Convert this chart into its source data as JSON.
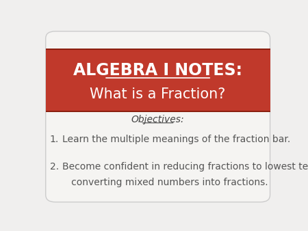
{
  "bg_color": "#f0efee",
  "header_bg": "#c0392b",
  "header_dark": "#8b2010",
  "header_text_line1": "ALGEBRA I NOTES:",
  "header_text_line2": "What is a Fraction?",
  "header_text_color": "#ffffff",
  "objectives_label": "Objectives:",
  "objectives_color": "#444444",
  "item1_num": "1.",
  "item1_text": "Learn the multiple meanings of the fraction bar.",
  "item2_num": "2.",
  "item2_text_line1": "Become confident in reducing fractions to lowest terms AND",
  "item2_text_line2": "   converting mixed numbers into fractions.",
  "body_text_color": "#555555"
}
